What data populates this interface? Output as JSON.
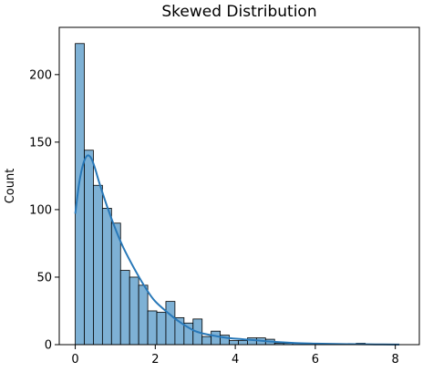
{
  "chart_data": {
    "type": "bar",
    "title": "Skewed Distribution",
    "xlabel": "",
    "ylabel": "Count",
    "xlim": [
      -0.4,
      8.6
    ],
    "ylim": [
      0,
      235
    ],
    "grid": false,
    "xticks": [
      0,
      2,
      4,
      6,
      8
    ],
    "yticks": [
      0,
      50,
      100,
      150,
      200
    ],
    "bin_width": 0.2265,
    "bin_edges_start": 0.0,
    "counts": [
      223,
      144,
      118,
      101,
      90,
      55,
      50,
      44,
      25,
      24,
      32,
      20,
      16,
      19,
      6,
      10,
      7,
      3,
      3,
      5,
      5,
      4,
      1,
      1,
      1,
      0,
      0,
      0,
      0,
      0,
      0,
      1,
      0,
      0,
      0,
      0
    ],
    "kde": {
      "x": [
        0.0,
        0.1,
        0.2,
        0.3,
        0.4,
        0.5,
        0.6,
        0.8,
        1.0,
        1.2,
        1.5,
        1.8,
        2.0,
        2.3,
        2.6,
        3.0,
        3.4,
        3.8,
        4.2,
        4.6,
        5.0,
        5.5,
        6.0,
        6.5,
        7.0,
        7.5,
        8.0,
        8.1
      ],
      "y": [
        97,
        120,
        134,
        140,
        138,
        130,
        120,
        102,
        86,
        72,
        55,
        40,
        32,
        24,
        17,
        10,
        7,
        5,
        4,
        3,
        2,
        1.2,
        0.8,
        0.5,
        0.3,
        0.2,
        0.1,
        0.1
      ]
    },
    "bar_color": "#7eb1d5",
    "bar_edge_color": "#000000",
    "kde_color": "#2878b8"
  }
}
